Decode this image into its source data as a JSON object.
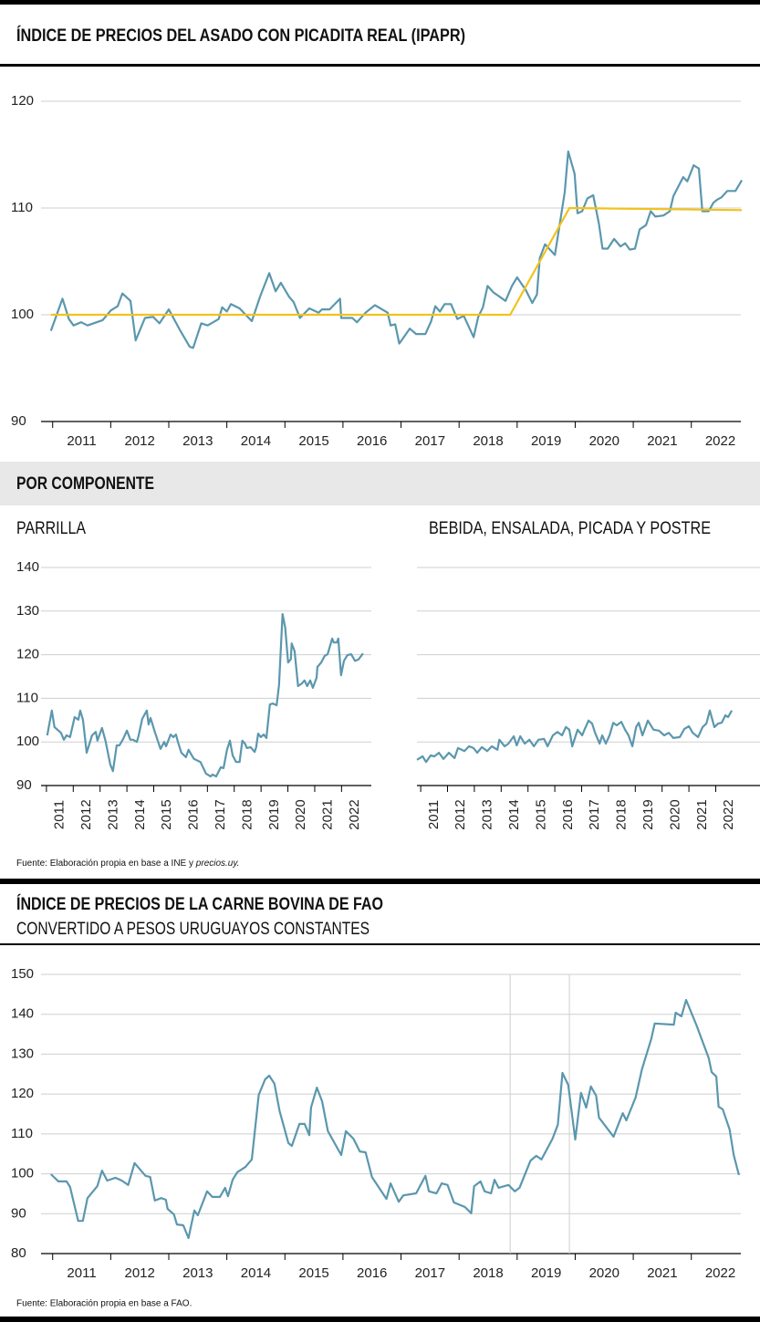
{
  "chart_data": [
    {
      "type": "line",
      "title": "ÍNDICE DE PRECIOS DEL ASADO CON PICADITA REAL (IPAPR)",
      "xlim": [
        2010.8,
        2022.9
      ],
      "xticks": [
        2011,
        2012,
        2013,
        2014,
        2015,
        2016,
        2017,
        2018,
        2019,
        2020,
        2021,
        2022
      ],
      "ylim": [
        90,
        120
      ],
      "yticks": [
        90,
        100,
        110,
        120
      ],
      "grid": true,
      "series": [
        {
          "color": "#5b97ae",
          "x": [
            2010.97,
            2011.17,
            2011.28,
            2011.36,
            2011.49,
            2011.6,
            2011.86,
            2012.0,
            2012.12,
            2012.2,
            2012.34,
            2012.43,
            2012.59,
            2012.73,
            2012.84,
            2013.0,
            2013.2,
            2013.36,
            2013.42,
            2013.56,
            2013.67,
            2013.86,
            2013.92,
            2014.0,
            2014.07,
            2014.22,
            2014.43,
            2014.58,
            2014.73,
            2014.84,
            2014.93,
            2015.07,
            2015.15,
            2015.26,
            2015.42,
            2015.58,
            2015.64,
            2015.77,
            2015.95,
            2015.97,
            2016.16,
            2016.24,
            2016.39,
            2016.55,
            2016.77,
            2016.82,
            2016.9,
            2016.97,
            2017.15,
            2017.26,
            2017.42,
            2017.52,
            2017.59,
            2017.67,
            2017.75,
            2017.86,
            2017.97,
            2018.08,
            2018.25,
            2018.33,
            2018.41,
            2018.49,
            2018.59,
            2018.8,
            2018.91,
            2019.0,
            2019.15,
            2019.26,
            2019.34,
            2019.39,
            2019.48,
            2019.65,
            2019.74,
            2019.82,
            2019.88,
            2019.99,
            2020.04,
            2020.12,
            2020.21,
            2020.31,
            2020.41,
            2020.47,
            2020.56,
            2020.67,
            2020.78,
            2020.86,
            2020.94,
            2021.03,
            2021.11,
            2021.22,
            2021.3,
            2021.38,
            2021.52,
            2021.63,
            2021.69,
            2021.86,
            2021.93,
            2022.04,
            2022.13,
            2022.19,
            2022.3,
            2022.38,
            2022.45,
            2022.52,
            2022.62,
            2022.76,
            2022.87
          ],
          "values": [
            98.5,
            101.5,
            99.6,
            99,
            99.3,
            99,
            99.5,
            100.4,
            100.8,
            102,
            101.3,
            97.6,
            99.7,
            99.8,
            99.2,
            100.5,
            98.5,
            97,
            96.9,
            99.2,
            99,
            99.6,
            100.7,
            100.3,
            101,
            100.6,
            99.4,
            101.8,
            103.9,
            102.2,
            103,
            101.7,
            101.2,
            99.7,
            100.6,
            100.2,
            100.5,
            100.5,
            101.5,
            99.7,
            99.7,
            99.3,
            100.2,
            100.9,
            100.2,
            99,
            99.1,
            97.3,
            98.7,
            98.2,
            98.2,
            99.4,
            100.8,
            100.3,
            101,
            101,
            99.6,
            99.9,
            97.9,
            99.8,
            100.7,
            102.7,
            102.1,
            101.3,
            102.7,
            103.5,
            102.3,
            101.1,
            101.9,
            105.3,
            106.6,
            105.6,
            108.7,
            111.5,
            115.3,
            113.2,
            109.5,
            109.7,
            110.9,
            111.2,
            108.5,
            106.2,
            106.2,
            107.1,
            106.4,
            106.7,
            106.1,
            106.2,
            108,
            108.4,
            109.7,
            109.2,
            109.3,
            109.7,
            111.1,
            112.9,
            112.5,
            114,
            113.7,
            109.7,
            109.7,
            110.5,
            110.8,
            111,
            111.6,
            111.6,
            112.6
          ]
        },
        {
          "color": "#f2c21b",
          "x": [
            2010.97,
            2018.88,
            2019.9,
            2022.87
          ],
          "values": [
            100,
            100,
            110,
            109.8
          ]
        }
      ]
    },
    {
      "type": "line",
      "title": "PARRILLA",
      "xlim": [
        2010.8,
        2023.11
      ],
      "xticks": [
        2011,
        2012,
        2013,
        2014,
        2015,
        2016,
        2017,
        2018,
        2019,
        2020,
        2021,
        2022
      ],
      "ylim": [
        90,
        140
      ],
      "yticks": [
        90,
        100,
        110,
        120,
        130,
        140
      ],
      "grid": true,
      "series": [
        {
          "color": "#5b97ae",
          "x": [
            2011.03,
            2011.2,
            2011.3,
            2011.54,
            2011.65,
            2011.75,
            2011.88,
            2012.05,
            2012.19,
            2012.26,
            2012.36,
            2012.5,
            2012.7,
            2012.84,
            2012.9,
            2013.07,
            2013.2,
            2013.38,
            2013.48,
            2013.62,
            2013.72,
            2013.86,
            2014.0,
            2014.13,
            2014.23,
            2014.37,
            2014.44,
            2014.57,
            2014.74,
            2014.81,
            2014.88,
            2015.05,
            2015.25,
            2015.39,
            2015.46,
            2015.63,
            2015.73,
            2015.83,
            2015.9,
            2016.03,
            2016.2,
            2016.3,
            2016.4,
            2016.5,
            2016.74,
            2016.95,
            2017.12,
            2017.19,
            2017.33,
            2017.5,
            2017.6,
            2017.73,
            2017.84,
            2017.94,
            2018.07,
            2018.2,
            2018.3,
            2018.4,
            2018.47,
            2018.61,
            2018.76,
            2018.82,
            2018.89,
            2018.99,
            2019.1,
            2019.2,
            2019.33,
            2019.44,
            2019.58,
            2019.67,
            2019.8,
            2019.9,
            2020.01,
            2020.11,
            2020.14,
            2020.25,
            2020.38,
            2020.52,
            2020.62,
            2020.72,
            2020.83,
            2020.93,
            2021.07,
            2021.1,
            2021.24,
            2021.37,
            2021.48,
            2021.65,
            2021.71,
            2021.82,
            2021.88,
            2021.98,
            2022.09,
            2022.22,
            2022.36,
            2022.5,
            2022.63,
            2022.8
          ],
          "values": [
            101.5,
            107.2,
            103.4,
            102.1,
            100.5,
            101.5,
            101.1,
            105.7,
            105.1,
            107.2,
            105.1,
            97.5,
            101.5,
            102.3,
            100.3,
            103.2,
            100.3,
            94.8,
            93.3,
            99.2,
            99.2,
            100.7,
            102.6,
            100.5,
            100.5,
            100,
            101.5,
            105.3,
            107.2,
            104,
            105.5,
            102.1,
            98.4,
            100,
            99,
            101.7,
            101.1,
            101.7,
            100,
            97.5,
            96.5,
            98.2,
            97.1,
            96.1,
            95.4,
            92.7,
            92.1,
            92.5,
            92.1,
            94.2,
            94,
            98.2,
            100.3,
            96.9,
            95.4,
            95.4,
            100.3,
            99.6,
            98.6,
            98.8,
            97.7,
            98.8,
            101.9,
            101.1,
            101.7,
            100.9,
            108.6,
            108.8,
            108.4,
            113,
            129.3,
            126.2,
            118.2,
            119,
            122.6,
            120.8,
            112.8,
            113.4,
            114.1,
            112.8,
            114.1,
            112.4,
            114.7,
            117.2,
            118.2,
            119.7,
            120.1,
            123.7,
            122.8,
            122.8,
            123.7,
            115.3,
            118.6,
            119.9,
            120.1,
            118.6,
            118.9,
            120.3
          ]
        }
      ]
    },
    {
      "type": "line",
      "title": "BEBIDA, ENSALADA, PICADA Y  POSTRE",
      "xlim": [
        2010.86,
        2023.65
      ],
      "xticks": [
        2011,
        2012,
        2013,
        2014,
        2015,
        2016,
        2017,
        2018,
        2019,
        2020,
        2021,
        2022
      ],
      "ylim": [
        90,
        140
      ],
      "yticks": [
        90,
        100,
        110,
        120,
        130,
        140
      ],
      "grid": true,
      "series": [
        {
          "color": "#5b97ae",
          "x": [
            2010.86,
            2011.07,
            2011.2,
            2011.37,
            2011.51,
            2011.68,
            2011.85,
            2012.05,
            2012.26,
            2012.39,
            2012.63,
            2012.8,
            2012.97,
            2013.11,
            2013.28,
            2013.48,
            2013.65,
            2013.86,
            2013.93,
            2014.13,
            2014.27,
            2014.47,
            2014.58,
            2014.71,
            2014.88,
            2015.05,
            2015.22,
            2015.39,
            2015.6,
            2015.73,
            2015.93,
            2016.1,
            2016.27,
            2016.41,
            2016.54,
            2016.65,
            2016.85,
            2017.02,
            2017.12,
            2017.26,
            2017.39,
            2017.5,
            2017.67,
            2017.77,
            2017.9,
            2018.04,
            2018.18,
            2018.31,
            2018.48,
            2018.62,
            2018.75,
            2018.89,
            2019.03,
            2019.13,
            2019.27,
            2019.47,
            2019.68,
            2019.88,
            2020.08,
            2020.25,
            2020.42,
            2020.66,
            2020.83,
            2021.0,
            2021.14,
            2021.34,
            2021.51,
            2021.65,
            2021.78,
            2021.95,
            2022.09,
            2022.22,
            2022.36,
            2022.46,
            2022.6
          ],
          "values": [
            95.9,
            96.7,
            95.4,
            96.9,
            96.7,
            97.5,
            96.1,
            97.5,
            96.3,
            98.6,
            97.9,
            99,
            98.6,
            97.5,
            98.8,
            97.9,
            99,
            98.2,
            100.5,
            99,
            99.6,
            101.3,
            99.2,
            101.3,
            99.6,
            100.5,
            99,
            100.5,
            100.7,
            99,
            101.5,
            102.3,
            101.5,
            103.4,
            102.8,
            99,
            102.8,
            101.5,
            103,
            104.9,
            104.2,
            102.1,
            99.6,
            101.5,
            99.6,
            101.5,
            104.4,
            103.8,
            104.6,
            102.8,
            101.5,
            99,
            103.4,
            104.4,
            101.5,
            104.9,
            102.8,
            102.6,
            101.5,
            102.1,
            100.9,
            101.1,
            103,
            103.6,
            102.1,
            101.1,
            103.4,
            104.2,
            107.2,
            103.4,
            104.2,
            104.4,
            106.1,
            105.7,
            107.2
          ]
        }
      ]
    },
    {
      "type": "line",
      "title": "ÍNDICE DE PRECIOS DE LA CARNE BOVINA DE FAO",
      "subtitle": "CONVERTIDO A PESOS URUGUAYOS CONSTANTES",
      "xlim": [
        2010.8,
        2022.9
      ],
      "xticks": [
        2011,
        2012,
        2013,
        2014,
        2015,
        2016,
        2017,
        2018,
        2019,
        2020,
        2021,
        2022
      ],
      "ylim": [
        80,
        150
      ],
      "yticks": [
        80,
        90,
        100,
        110,
        120,
        130,
        140,
        150
      ],
      "grid": true,
      "vlines": [
        2018.88,
        2019.9
      ],
      "series": [
        {
          "color": "#5b97ae",
          "x": [
            2010.97,
            2011.1,
            2011.24,
            2011.3,
            2011.44,
            2011.52,
            2011.6,
            2011.77,
            2011.85,
            2011.94,
            2012.08,
            2012.19,
            2012.3,
            2012.41,
            2012.6,
            2012.68,
            2012.76,
            2012.87,
            2012.95,
            2012.98,
            2013.09,
            2013.14,
            2013.25,
            2013.34,
            2013.44,
            2013.5,
            2013.66,
            2013.75,
            2013.88,
            2013.97,
            2014.02,
            2014.1,
            2014.18,
            2014.32,
            2014.43,
            2014.55,
            2014.66,
            2014.73,
            2014.82,
            2014.91,
            2015.06,
            2015.12,
            2015.25,
            2015.34,
            2015.42,
            2015.45,
            2015.55,
            2015.64,
            2015.74,
            2015.97,
            2016.05,
            2016.18,
            2016.29,
            2016.39,
            2016.5,
            2016.75,
            2016.82,
            2016.96,
            2017.04,
            2017.26,
            2017.42,
            2017.48,
            2017.61,
            2017.7,
            2017.8,
            2017.91,
            2018.1,
            2018.21,
            2018.26,
            2018.37,
            2018.44,
            2018.55,
            2018.61,
            2018.68,
            2018.85,
            2018.96,
            2019.04,
            2019.23,
            2019.33,
            2019.42,
            2019.61,
            2019.7,
            2019.78,
            2019.88,
            2020.0,
            2020.1,
            2020.19,
            2020.27,
            2020.36,
            2020.41,
            2020.66,
            2020.76,
            2020.82,
            2020.88,
            2021.04,
            2021.15,
            2021.31,
            2021.37,
            2021.7,
            2021.73,
            2021.83,
            2021.91,
            2022.09,
            2022.3,
            2022.35,
            2022.43,
            2022.47,
            2022.54,
            2022.66,
            2022.73,
            2022.82
          ],
          "values": [
            99.9,
            98.1,
            98.1,
            96.7,
            88.2,
            88.2,
            93.9,
            96.9,
            100.8,
            98.3,
            99,
            98.3,
            97.2,
            102.7,
            99.5,
            99.2,
            93.3,
            93.9,
            93.5,
            91.2,
            89.8,
            87.3,
            87.1,
            83.9,
            90.8,
            89.6,
            95.6,
            94.2,
            94.2,
            96.5,
            94.4,
            98.5,
            100.4,
            101.7,
            103.6,
            119.8,
            123.7,
            124.6,
            122.6,
            115.7,
            107.7,
            107,
            112.5,
            112.5,
            109.7,
            116.6,
            121.6,
            118.2,
            110.7,
            104.7,
            110.7,
            108.8,
            105.6,
            105.4,
            99.2,
            93.7,
            97.6,
            93,
            94.6,
            95.1,
            99.5,
            95.6,
            95.1,
            97.6,
            97.2,
            92.8,
            91.7,
            90.1,
            96.9,
            98.1,
            95.6,
            95.1,
            98.5,
            96.5,
            97.2,
            95.6,
            96.5,
            103.3,
            104.5,
            103.6,
            108.8,
            112.3,
            125.3,
            122.3,
            108.6,
            120.3,
            116.6,
            121.9,
            119.6,
            114.1,
            109.3,
            113,
            115.2,
            113.4,
            119.1,
            126.2,
            133.8,
            137.7,
            137.4,
            140.4,
            139.5,
            143.6,
            137.2,
            129,
            125.5,
            124.4,
            116.8,
            116.2,
            111.1,
            104.7,
            99.7
          ]
        }
      ]
    }
  ],
  "section_title": "POR COMPONENTE",
  "source_1": {
    "text": "Fuente: Elaboración propia en base a INE y ",
    "link": "precios.uy."
  },
  "source_2": "Fuente:  Elaboración propia en base a FAO."
}
